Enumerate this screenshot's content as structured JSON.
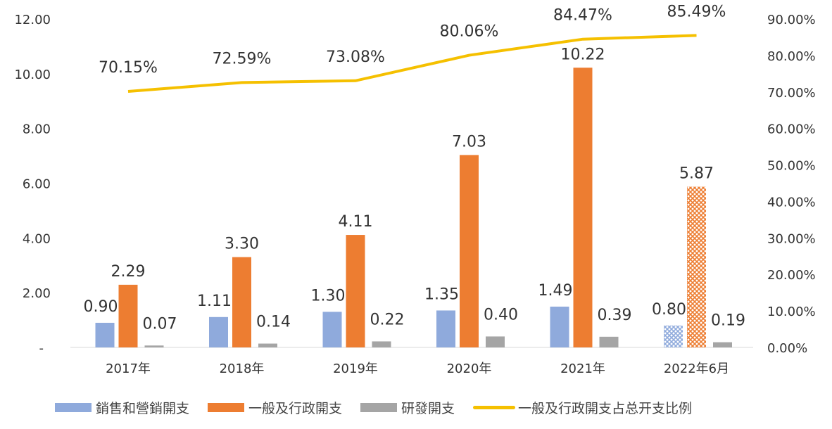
{
  "chart_data": {
    "type": "bar+line",
    "categories": [
      "2017年",
      "2018年",
      "2019年",
      "2020年",
      "2021年",
      "2022年6月"
    ],
    "series": [
      {
        "name": "銷售和營銷開支",
        "type": "bar",
        "axis": "left",
        "color": "#8faadc",
        "values": [
          0.9,
          1.11,
          1.3,
          1.35,
          1.49,
          0.8
        ],
        "labels": [
          "0.90",
          "1.11",
          "1.30",
          "1.35",
          "1.49",
          "0.80"
        ]
      },
      {
        "name": "一般及行政開支",
        "type": "bar",
        "axis": "left",
        "color": "#ed7d31",
        "values": [
          2.29,
          3.3,
          4.11,
          7.03,
          10.22,
          5.87
        ],
        "labels": [
          "2.29",
          "3.30",
          "4.11",
          "7.03",
          "10.22",
          "5.87"
        ]
      },
      {
        "name": "研發開支",
        "type": "bar",
        "axis": "left",
        "color": "#a5a5a5",
        "values": [
          0.07,
          0.14,
          0.22,
          0.4,
          0.39,
          0.19
        ],
        "labels": [
          "0.07",
          "0.14",
          "0.22",
          "0.40",
          "0.39",
          "0.19"
        ]
      },
      {
        "name": "一般及行政開支占总开支比例",
        "type": "line",
        "axis": "right",
        "color": "#f5c000",
        "values": [
          70.15,
          72.59,
          73.08,
          80.06,
          84.47,
          85.49
        ],
        "labels": [
          "70.15%",
          "72.59%",
          "73.08%",
          "80.06%",
          "84.47%",
          "85.49%"
        ]
      }
    ],
    "hatched_category": "2022年6月",
    "left_axis": {
      "ylim": [
        0,
        12
      ],
      "ticks": [
        "-",
        "2.00",
        "4.00",
        "6.00",
        "8.00",
        "10.00",
        "12.00"
      ]
    },
    "right_axis": {
      "ylim": [
        0,
        90
      ],
      "ticks": [
        "0.00%",
        "10.00%",
        "20.00%",
        "30.00%",
        "40.00%",
        "50.00%",
        "60.00%",
        "70.00%",
        "80.00%",
        "90.00%"
      ]
    },
    "grid": false,
    "legend": "bottom"
  }
}
